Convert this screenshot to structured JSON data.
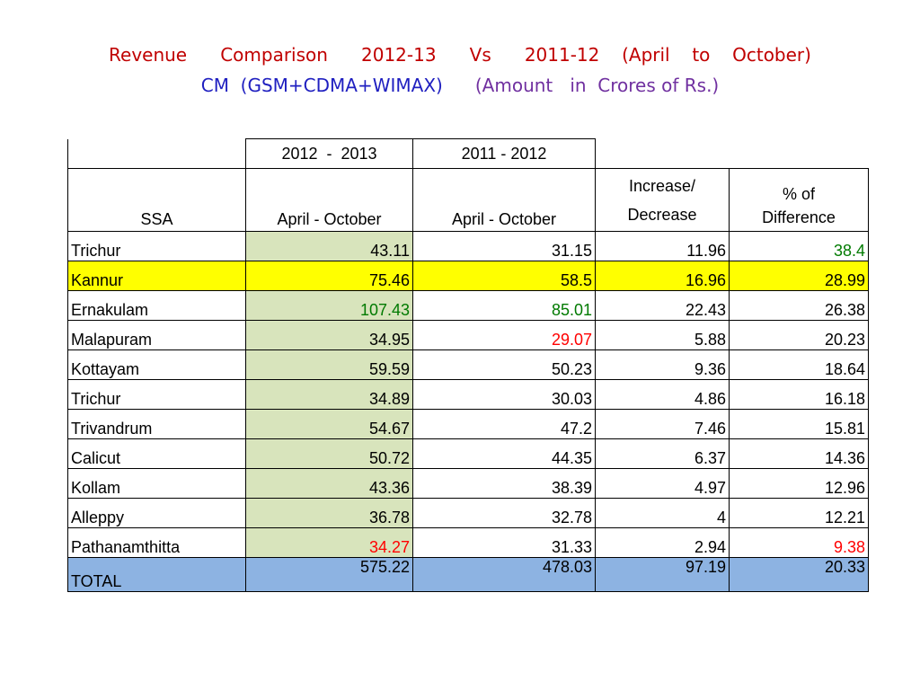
{
  "title": {
    "line1": "Revenue   Comparison   2012-13   Vs   2011-12  (April  to  October)",
    "line2_part1": "CM  (GSM+CDMA+WIMAX)",
    "line2_part2": "(Amount   in  Crores of Rs.)"
  },
  "colors": {
    "title_red": "#c00000",
    "title_blue": "#1f1fc0",
    "title_purple": "#7030a0",
    "highlight_green_cell": "#d8e4bc",
    "highlight_yellow_row": "#ffff00",
    "total_row": "#8db3e2",
    "value_green": "#007a00",
    "value_red": "#ff0000"
  },
  "table": {
    "year_headers": [
      "2012  -  2013",
      "2011 - 2012"
    ],
    "headers": {
      "ssa": "SSA",
      "col1": "April - October",
      "col2": "April - October",
      "col3_line1": "Increase/",
      "col3_line2": "Decrease",
      "col4_line1": "% of",
      "col4_line2": "Difference"
    },
    "rows": [
      {
        "ssa": "Trichur",
        "y2012": "43.11",
        "y2011": "31.15",
        "diff": "11.96",
        "pct": "38.4"
      },
      {
        "ssa": "Kannur",
        "y2012": "75.46",
        "y2011": "58.5",
        "diff": "16.96",
        "pct": "28.99"
      },
      {
        "ssa": "Ernakulam",
        "y2012": "107.43",
        "y2011": "85.01",
        "diff": "22.43",
        "pct": "26.38"
      },
      {
        "ssa": "Malapuram",
        "y2012": "34.95",
        "y2011": "29.07",
        "diff": "5.88",
        "pct": "20.23"
      },
      {
        "ssa": "Kottayam",
        "y2012": "59.59",
        "y2011": "50.23",
        "diff": "9.36",
        "pct": "18.64"
      },
      {
        "ssa": "Trichur",
        "y2012": "34.89",
        "y2011": "30.03",
        "diff": "4.86",
        "pct": "16.18"
      },
      {
        "ssa": "Trivandrum",
        "y2012": "54.67",
        "y2011": "47.2",
        "diff": "7.46",
        "pct": "15.81"
      },
      {
        "ssa": "Calicut",
        "y2012": "50.72",
        "y2011": "44.35",
        "diff": "6.37",
        "pct": "14.36"
      },
      {
        "ssa": "Kollam",
        "y2012": "43.36",
        "y2011": "38.39",
        "diff": "4.97",
        "pct": "12.96"
      },
      {
        "ssa": "Alleppy",
        "y2012": "36.78",
        "y2011": "32.78",
        "diff": "4",
        "pct": "12.21"
      },
      {
        "ssa": "Pathanamthitta",
        "y2012": "34.27",
        "y2011": "31.33",
        "diff": "2.94",
        "pct": "9.38"
      }
    ],
    "total": {
      "ssa": "TOTAL",
      "y2012": "575.22",
      "y2011": "478.03",
      "diff": "97.19",
      "pct": "20.33"
    }
  }
}
